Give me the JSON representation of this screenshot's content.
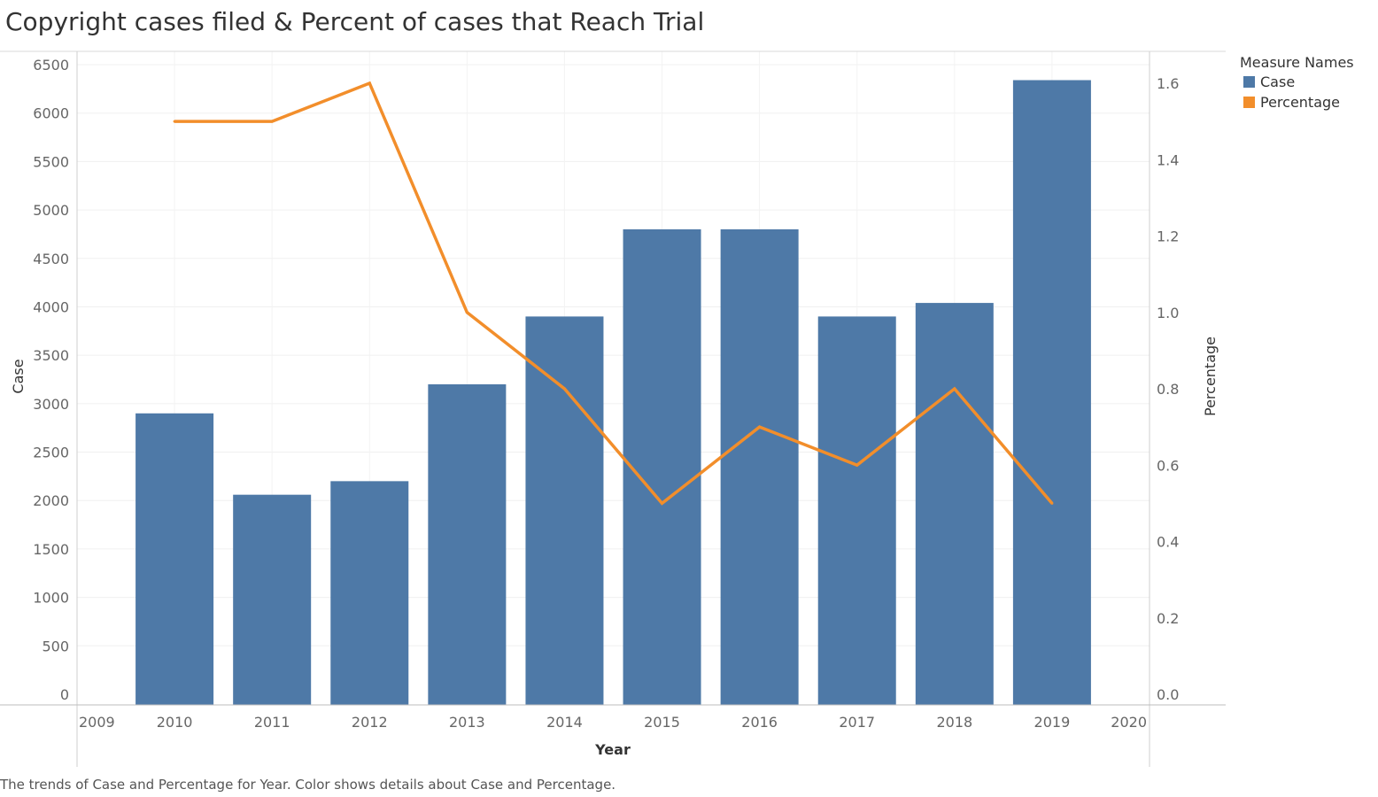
{
  "chart_data": {
    "type": "bar+line",
    "title": "Copyright cases filed & Percent of cases that Reach Trial",
    "caption": "The trends of Case and Percentage for Year.  Color shows details about Case and Percentage.",
    "xlabel": "Year",
    "ylabel_left": "Case",
    "ylabel_right": "Percentage",
    "x_ticks": [
      "2009",
      "2010",
      "2011",
      "2012",
      "2013",
      "2014",
      "2015",
      "2016",
      "2017",
      "2018",
      "2019",
      "2020"
    ],
    "x_range": [
      2009,
      2020
    ],
    "y_left_ticks": [
      "0",
      "500",
      "1000",
      "1500",
      "2000",
      "2500",
      "3000",
      "3500",
      "4000",
      "4500",
      "5000",
      "5500",
      "6000",
      "6500"
    ],
    "y_left_range": [
      0,
      6500
    ],
    "y_right_ticks": [
      "0.0",
      "0.2",
      "0.4",
      "0.6",
      "0.8",
      "1.0",
      "1.2",
      "1.4",
      "1.6"
    ],
    "y_right_range": [
      0,
      1.65
    ],
    "grid": true,
    "legend_position": "top-right",
    "legend_title": "Measure Names",
    "categories": [
      2010,
      2011,
      2012,
      2013,
      2014,
      2015,
      2016,
      2017,
      2018,
      2019
    ],
    "series": [
      {
        "name": "Case",
        "type": "bar",
        "axis": "left",
        "color": "#4e79a7",
        "values": [
          2900,
          2060,
          2200,
          3200,
          3900,
          4800,
          4800,
          3900,
          4040,
          6340
        ]
      },
      {
        "name": "Percentage",
        "type": "line",
        "axis": "right",
        "color": "#f28e2b",
        "values": [
          1.5,
          1.5,
          1.6,
          1.0,
          0.8,
          0.5,
          0.7,
          0.6,
          0.8,
          0.5
        ]
      }
    ]
  }
}
